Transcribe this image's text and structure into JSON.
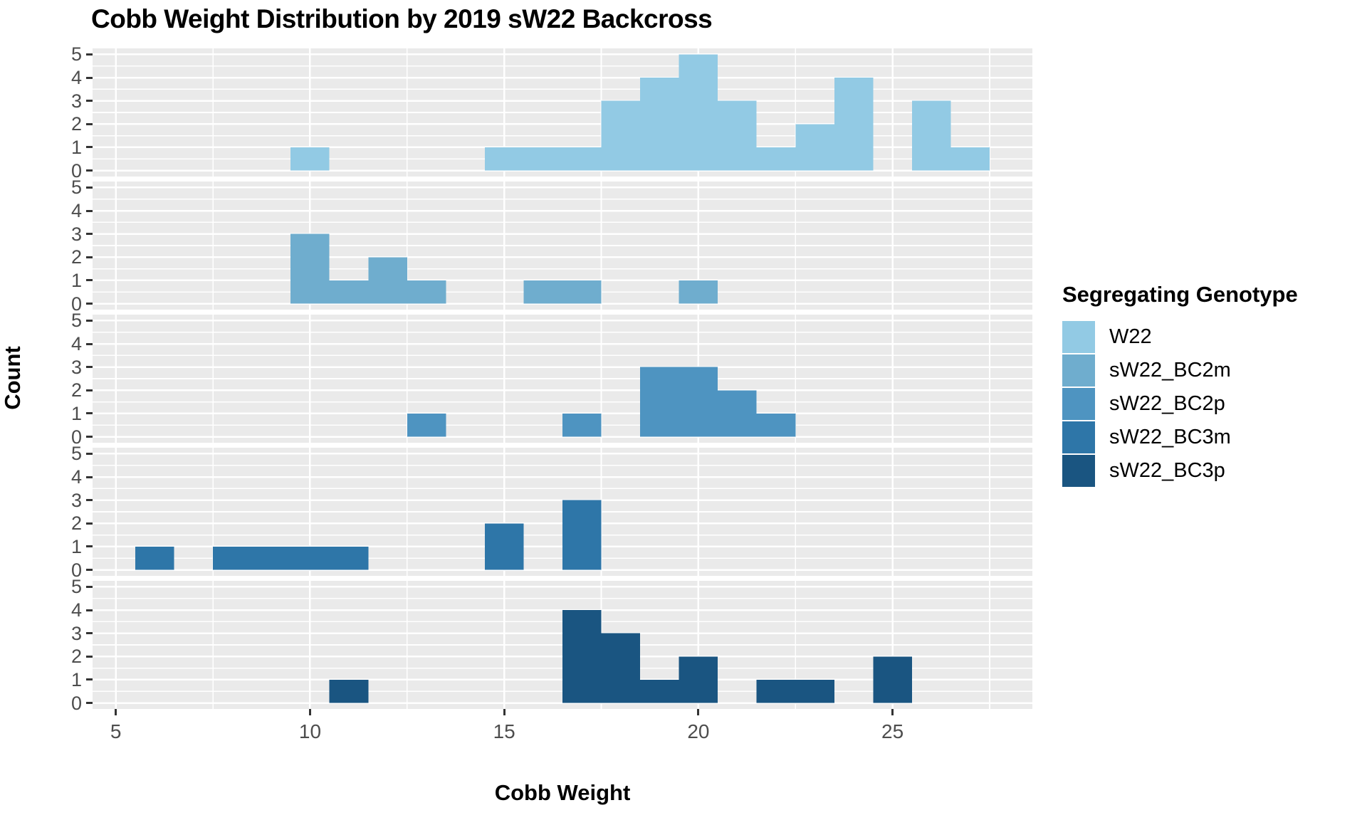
{
  "page": {
    "background": "#ffffff"
  },
  "title": "Cobb Weight Distribution by 2019 sW22 Backcross",
  "axes": {
    "x_label": "Cobb Weight",
    "y_label": "Count",
    "x_ticks": [
      5,
      10,
      15,
      20,
      25
    ],
    "y_ticks": [
      0,
      1,
      2,
      3,
      4,
      5
    ]
  },
  "legend": {
    "title": "Segregating Genotype",
    "items": [
      {
        "label": "W22",
        "color": "#92CAE4"
      },
      {
        "label": "sW22_BC2m",
        "color": "#6FADCE"
      },
      {
        "label": "sW22_BC2p",
        "color": "#4E94C1"
      },
      {
        "label": "sW22_BC3m",
        "color": "#2E76A8"
      },
      {
        "label": "sW22_BC3p",
        "color": "#1A5581"
      }
    ]
  },
  "style": {
    "panel_bg": "#EAEAEA",
    "grid_color": "#FFFFFF",
    "tick_color": "#333333",
    "tick_label_color": "#4D4D4D",
    "text_color": "#000000"
  },
  "chart_data": {
    "type": "bar",
    "subtype": "faceted-histogram",
    "title": "Cobb Weight Distribution by 2019 sW22 Backcross",
    "xlabel": "Cobb Weight",
    "ylabel": "Count",
    "legend_title": "Segregating Genotype",
    "legend_position": "right",
    "binwidth": 1,
    "xlim": [
      4.4,
      28.6
    ],
    "ylim_per_facet": [
      0,
      5
    ],
    "x_ticks": [
      5,
      10,
      15,
      20,
      25
    ],
    "y_ticks": [
      0,
      1,
      2,
      3,
      4,
      5
    ],
    "grid": true,
    "x_minor_gridlines": [
      7.5,
      12.5,
      17.5,
      22.5,
      27.5
    ],
    "facets": [
      {
        "name": "W22",
        "color": "#92CAE4",
        "bins": [
          {
            "x": 10,
            "n": 1
          },
          {
            "x": 15,
            "n": 1
          },
          {
            "x": 16,
            "n": 1
          },
          {
            "x": 17,
            "n": 1
          },
          {
            "x": 18,
            "n": 3
          },
          {
            "x": 19,
            "n": 4
          },
          {
            "x": 20,
            "n": 5
          },
          {
            "x": 21,
            "n": 3
          },
          {
            "x": 22,
            "n": 1
          },
          {
            "x": 23,
            "n": 2
          },
          {
            "x": 24,
            "n": 4
          },
          {
            "x": 26,
            "n": 3
          },
          {
            "x": 27,
            "n": 1
          }
        ]
      },
      {
        "name": "sW22_BC2m",
        "color": "#6FADCE",
        "bins": [
          {
            "x": 10,
            "n": 3
          },
          {
            "x": 11,
            "n": 1
          },
          {
            "x": 12,
            "n": 2
          },
          {
            "x": 13,
            "n": 1
          },
          {
            "x": 16,
            "n": 1
          },
          {
            "x": 17,
            "n": 1
          },
          {
            "x": 20,
            "n": 1
          }
        ]
      },
      {
        "name": "sW22_BC2p",
        "color": "#4E94C1",
        "bins": [
          {
            "x": 13,
            "n": 1
          },
          {
            "x": 17,
            "n": 1
          },
          {
            "x": 19,
            "n": 3
          },
          {
            "x": 20,
            "n": 3
          },
          {
            "x": 21,
            "n": 2
          },
          {
            "x": 22,
            "n": 1
          }
        ]
      },
      {
        "name": "sW22_BC3m",
        "color": "#2E76A8",
        "bins": [
          {
            "x": 6,
            "n": 1
          },
          {
            "x": 8,
            "n": 1
          },
          {
            "x": 9,
            "n": 1
          },
          {
            "x": 10,
            "n": 1
          },
          {
            "x": 11,
            "n": 1
          },
          {
            "x": 15,
            "n": 2
          },
          {
            "x": 17,
            "n": 3
          }
        ]
      },
      {
        "name": "sW22_BC3p",
        "color": "#1A5581",
        "bins": [
          {
            "x": 11,
            "n": 1
          },
          {
            "x": 17,
            "n": 4
          },
          {
            "x": 18,
            "n": 3
          },
          {
            "x": 19,
            "n": 1
          },
          {
            "x": 20,
            "n": 2
          },
          {
            "x": 22,
            "n": 1
          },
          {
            "x": 23,
            "n": 1
          },
          {
            "x": 25,
            "n": 2
          }
        ]
      }
    ]
  }
}
